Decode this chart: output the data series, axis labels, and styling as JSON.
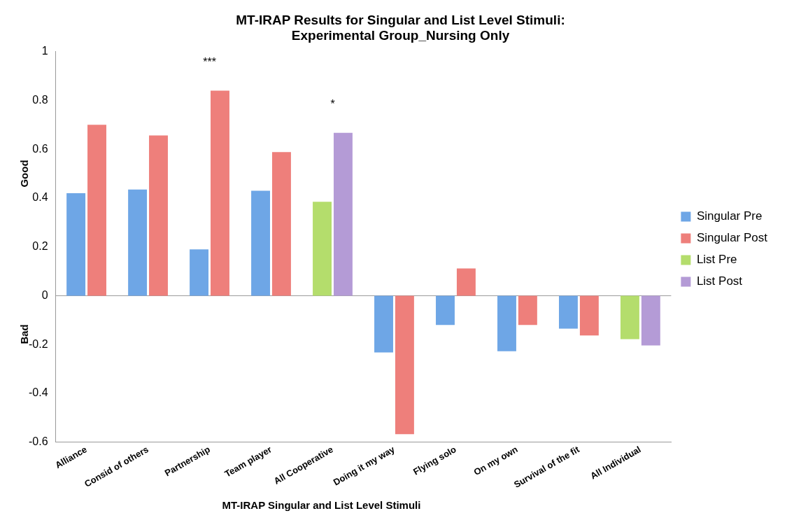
{
  "chart_data": {
    "type": "bar",
    "title": "MT-IRAP Results for Singular and List Level Stimuli:\nExperimental Group_Nursing Only",
    "xlabel": "MT-IRAP Singular and List Level Stimuli",
    "categories": [
      "Alliance",
      "Consid of others",
      "Partnership",
      "Team player",
      "All Cooperative",
      "Doing it my way",
      "Flying solo",
      "On my own",
      "Survival of the fit",
      "All Individual"
    ],
    "series": [
      {
        "name": "Singular Pre",
        "color": "#6ea6e6",
        "values": [
          0.42,
          0.435,
          0.19,
          0.43,
          null,
          -0.232,
          -0.12,
          -0.227,
          -0.135,
          null
        ]
      },
      {
        "name": "Singular Post",
        "color": "#ee7f7b",
        "values": [
          0.7,
          0.656,
          0.84,
          0.588,
          null,
          -0.567,
          0.112,
          -0.12,
          -0.163,
          null
        ]
      },
      {
        "name": "List Pre",
        "color": "#b4dd6c",
        "values": [
          null,
          null,
          null,
          null,
          0.385,
          null,
          null,
          null,
          null,
          -0.178
        ]
      },
      {
        "name": "List Post",
        "color": "#b49bd6",
        "values": [
          null,
          null,
          null,
          null,
          0.667,
          null,
          null,
          null,
          null,
          -0.204
        ]
      }
    ],
    "ylim": [
      -0.6,
      1
    ],
    "yticks": [
      -0.6,
      -0.4,
      -0.2,
      0,
      0.2,
      0.4,
      0.6,
      0.8,
      1
    ],
    "grid": false,
    "ref_lines": [
      {
        "axis": "y",
        "value": 0,
        "color": "#999999"
      }
    ],
    "legend": "right",
    "annotations": [
      "Good",
      "Bad",
      {
        "text": "***",
        "x": "Partnership",
        "y": 0.84
      },
      {
        "text": "*",
        "x": "All Cooperative",
        "y": 0.667
      }
    ]
  }
}
